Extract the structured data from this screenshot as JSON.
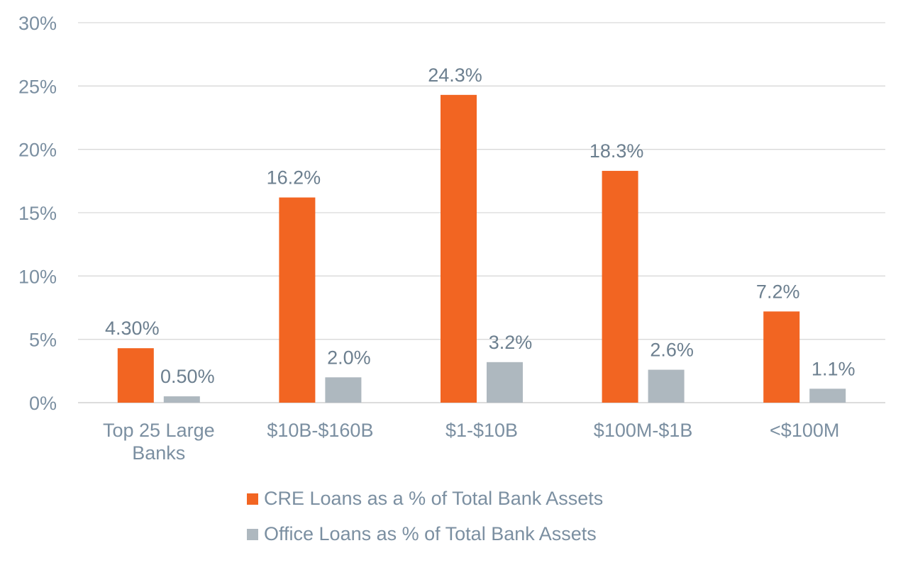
{
  "chart_data": {
    "type": "bar",
    "categories": [
      [
        "Top 25 Large",
        "Banks"
      ],
      [
        "$10B-$160B"
      ],
      [
        "$1-$10B"
      ],
      [
        "$100M-$1B"
      ],
      [
        "<$100M"
      ]
    ],
    "series": [
      {
        "name": "CRE Loans as a % of Total Bank Assets",
        "color": "#f26522",
        "values": [
          4.3,
          16.2,
          24.3,
          18.3,
          7.2
        ],
        "labels": [
          "4.30%",
          "16.2%",
          "24.3%",
          "18.3%",
          "7.2%"
        ]
      },
      {
        "name": "Office Loans as % of Total Bank Assets",
        "color": "#aeb8bf",
        "values": [
          0.5,
          2.0,
          3.2,
          2.6,
          1.1
        ],
        "labels": [
          "0.50%",
          "2.0%",
          "3.2%",
          "2.6%",
          "1.1%"
        ]
      }
    ],
    "ylim": [
      0,
      30
    ],
    "yticks": [
      0,
      5,
      10,
      15,
      20,
      25,
      30
    ],
    "ytick_labels": [
      "0%",
      "5%",
      "10%",
      "15%",
      "20%",
      "25%",
      "30%"
    ],
    "grid": true,
    "legend_position": "bottom"
  }
}
